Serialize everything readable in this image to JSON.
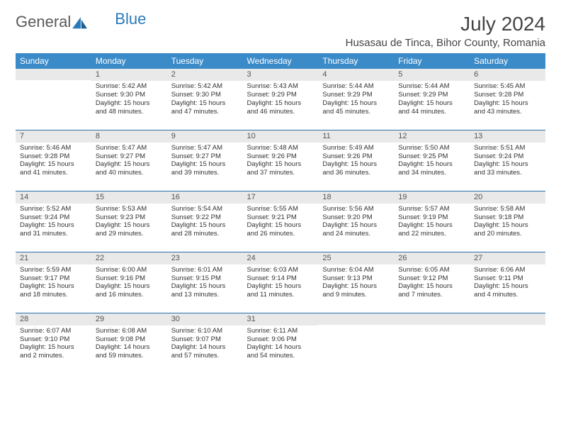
{
  "logo": {
    "part1": "General",
    "part2": "Blue"
  },
  "title": "July 2024",
  "location": "Husasau de Tinca, Bihor County, Romania",
  "colors": {
    "header_bg": "#3b8bc9",
    "header_text": "#ffffff",
    "daynum_bg": "#e9e9e9",
    "daynum_text": "#555555",
    "body_text": "#333333",
    "rule": "#2a6fa8",
    "logo_gray": "#5a5a5a",
    "logo_blue": "#2a7ab9"
  },
  "day_headers": [
    "Sunday",
    "Monday",
    "Tuesday",
    "Wednesday",
    "Thursday",
    "Friday",
    "Saturday"
  ],
  "weeks": [
    [
      {
        "n": "",
        "sr": "",
        "ss": "",
        "dl": ""
      },
      {
        "n": "1",
        "sr": "Sunrise: 5:42 AM",
        "ss": "Sunset: 9:30 PM",
        "dl": "Daylight: 15 hours and 48 minutes."
      },
      {
        "n": "2",
        "sr": "Sunrise: 5:42 AM",
        "ss": "Sunset: 9:30 PM",
        "dl": "Daylight: 15 hours and 47 minutes."
      },
      {
        "n": "3",
        "sr": "Sunrise: 5:43 AM",
        "ss": "Sunset: 9:29 PM",
        "dl": "Daylight: 15 hours and 46 minutes."
      },
      {
        "n": "4",
        "sr": "Sunrise: 5:44 AM",
        "ss": "Sunset: 9:29 PM",
        "dl": "Daylight: 15 hours and 45 minutes."
      },
      {
        "n": "5",
        "sr": "Sunrise: 5:44 AM",
        "ss": "Sunset: 9:29 PM",
        "dl": "Daylight: 15 hours and 44 minutes."
      },
      {
        "n": "6",
        "sr": "Sunrise: 5:45 AM",
        "ss": "Sunset: 9:28 PM",
        "dl": "Daylight: 15 hours and 43 minutes."
      }
    ],
    [
      {
        "n": "7",
        "sr": "Sunrise: 5:46 AM",
        "ss": "Sunset: 9:28 PM",
        "dl": "Daylight: 15 hours and 41 minutes."
      },
      {
        "n": "8",
        "sr": "Sunrise: 5:47 AM",
        "ss": "Sunset: 9:27 PM",
        "dl": "Daylight: 15 hours and 40 minutes."
      },
      {
        "n": "9",
        "sr": "Sunrise: 5:47 AM",
        "ss": "Sunset: 9:27 PM",
        "dl": "Daylight: 15 hours and 39 minutes."
      },
      {
        "n": "10",
        "sr": "Sunrise: 5:48 AM",
        "ss": "Sunset: 9:26 PM",
        "dl": "Daylight: 15 hours and 37 minutes."
      },
      {
        "n": "11",
        "sr": "Sunrise: 5:49 AM",
        "ss": "Sunset: 9:26 PM",
        "dl": "Daylight: 15 hours and 36 minutes."
      },
      {
        "n": "12",
        "sr": "Sunrise: 5:50 AM",
        "ss": "Sunset: 9:25 PM",
        "dl": "Daylight: 15 hours and 34 minutes."
      },
      {
        "n": "13",
        "sr": "Sunrise: 5:51 AM",
        "ss": "Sunset: 9:24 PM",
        "dl": "Daylight: 15 hours and 33 minutes."
      }
    ],
    [
      {
        "n": "14",
        "sr": "Sunrise: 5:52 AM",
        "ss": "Sunset: 9:24 PM",
        "dl": "Daylight: 15 hours and 31 minutes."
      },
      {
        "n": "15",
        "sr": "Sunrise: 5:53 AM",
        "ss": "Sunset: 9:23 PM",
        "dl": "Daylight: 15 hours and 29 minutes."
      },
      {
        "n": "16",
        "sr": "Sunrise: 5:54 AM",
        "ss": "Sunset: 9:22 PM",
        "dl": "Daylight: 15 hours and 28 minutes."
      },
      {
        "n": "17",
        "sr": "Sunrise: 5:55 AM",
        "ss": "Sunset: 9:21 PM",
        "dl": "Daylight: 15 hours and 26 minutes."
      },
      {
        "n": "18",
        "sr": "Sunrise: 5:56 AM",
        "ss": "Sunset: 9:20 PM",
        "dl": "Daylight: 15 hours and 24 minutes."
      },
      {
        "n": "19",
        "sr": "Sunrise: 5:57 AM",
        "ss": "Sunset: 9:19 PM",
        "dl": "Daylight: 15 hours and 22 minutes."
      },
      {
        "n": "20",
        "sr": "Sunrise: 5:58 AM",
        "ss": "Sunset: 9:18 PM",
        "dl": "Daylight: 15 hours and 20 minutes."
      }
    ],
    [
      {
        "n": "21",
        "sr": "Sunrise: 5:59 AM",
        "ss": "Sunset: 9:17 PM",
        "dl": "Daylight: 15 hours and 18 minutes."
      },
      {
        "n": "22",
        "sr": "Sunrise: 6:00 AM",
        "ss": "Sunset: 9:16 PM",
        "dl": "Daylight: 15 hours and 16 minutes."
      },
      {
        "n": "23",
        "sr": "Sunrise: 6:01 AM",
        "ss": "Sunset: 9:15 PM",
        "dl": "Daylight: 15 hours and 13 minutes."
      },
      {
        "n": "24",
        "sr": "Sunrise: 6:03 AM",
        "ss": "Sunset: 9:14 PM",
        "dl": "Daylight: 15 hours and 11 minutes."
      },
      {
        "n": "25",
        "sr": "Sunrise: 6:04 AM",
        "ss": "Sunset: 9:13 PM",
        "dl": "Daylight: 15 hours and 9 minutes."
      },
      {
        "n": "26",
        "sr": "Sunrise: 6:05 AM",
        "ss": "Sunset: 9:12 PM",
        "dl": "Daylight: 15 hours and 7 minutes."
      },
      {
        "n": "27",
        "sr": "Sunrise: 6:06 AM",
        "ss": "Sunset: 9:11 PM",
        "dl": "Daylight: 15 hours and 4 minutes."
      }
    ],
    [
      {
        "n": "28",
        "sr": "Sunrise: 6:07 AM",
        "ss": "Sunset: 9:10 PM",
        "dl": "Daylight: 15 hours and 2 minutes."
      },
      {
        "n": "29",
        "sr": "Sunrise: 6:08 AM",
        "ss": "Sunset: 9:08 PM",
        "dl": "Daylight: 14 hours and 59 minutes."
      },
      {
        "n": "30",
        "sr": "Sunrise: 6:10 AM",
        "ss": "Sunset: 9:07 PM",
        "dl": "Daylight: 14 hours and 57 minutes."
      },
      {
        "n": "31",
        "sr": "Sunrise: 6:11 AM",
        "ss": "Sunset: 9:06 PM",
        "dl": "Daylight: 14 hours and 54 minutes."
      },
      {
        "n": "",
        "sr": "",
        "ss": "",
        "dl": ""
      },
      {
        "n": "",
        "sr": "",
        "ss": "",
        "dl": ""
      },
      {
        "n": "",
        "sr": "",
        "ss": "",
        "dl": ""
      }
    ]
  ]
}
